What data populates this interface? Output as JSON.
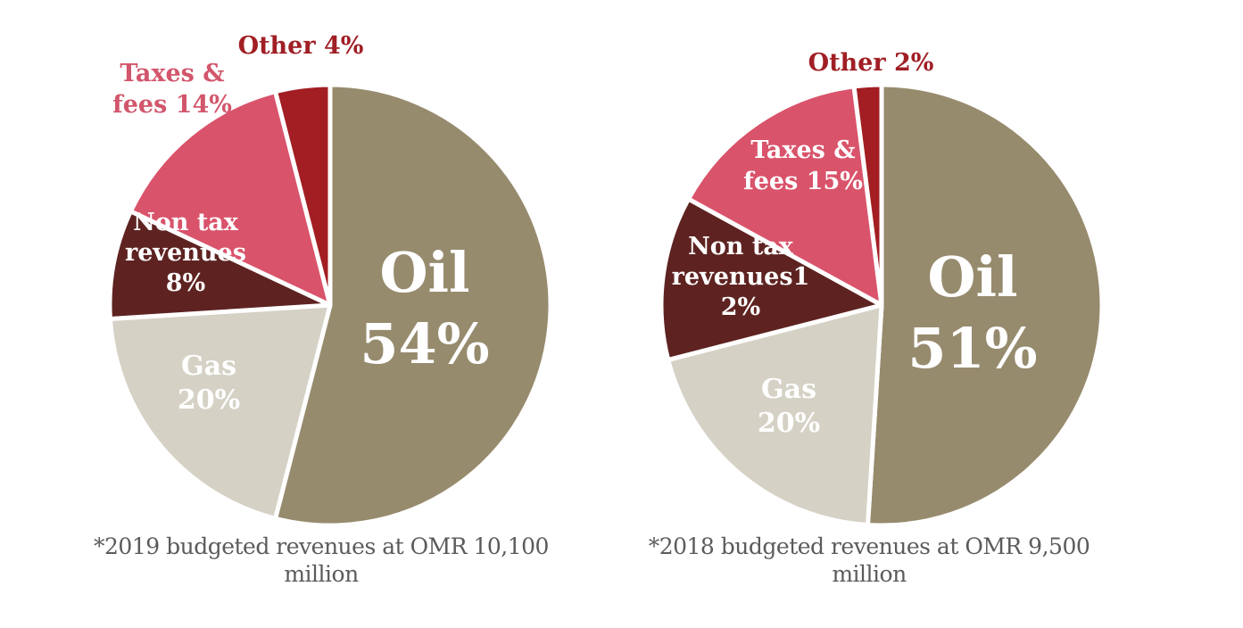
{
  "chart_data": [
    {
      "type": "pie",
      "title": "",
      "caption_line1": "*2019 budgeted revenues at OMR 10,100",
      "caption_line2": "million",
      "slices": [
        {
          "name": "Oil",
          "value": 54,
          "label_lines": [
            "Oil",
            "54%"
          ],
          "color": "#978b6e",
          "label_color": "#ffffff",
          "label_position": "inside"
        },
        {
          "name": "Gas",
          "value": 20,
          "label_lines": [
            "Gas",
            "20%"
          ],
          "color": "#d5d1c5",
          "label_color": "#ffffff",
          "label_position": "inside"
        },
        {
          "name": "Non tax revenues",
          "value": 8,
          "label_lines": [
            "Non tax",
            "revenues",
            "8%"
          ],
          "color": "#5e2321",
          "label_color": "#ffffff",
          "label_position": "inside"
        },
        {
          "name": "Taxes & fees",
          "value": 14,
          "label_lines": [
            "Taxes &",
            "fees 14%"
          ],
          "color": "#d9536b",
          "label_color": "#d2566c",
          "label_position": "outside"
        },
        {
          "name": "Other",
          "value": 4,
          "label_lines": [
            "Other 4%"
          ],
          "color": "#a21e23",
          "label_color": "#a01f25",
          "label_position": "outside"
        }
      ]
    },
    {
      "type": "pie",
      "title": "",
      "caption_line1": "*2018 budgeted revenues at OMR 9,500",
      "caption_line2": "million",
      "slices": [
        {
          "name": "Oil",
          "value": 51,
          "label_lines": [
            "Oil",
            "51%"
          ],
          "color": "#978b6e",
          "label_color": "#ffffff",
          "label_position": "inside"
        },
        {
          "name": "Gas",
          "value": 20,
          "label_lines": [
            "Gas",
            "20%"
          ],
          "color": "#d5d1c5",
          "label_color": "#ffffff",
          "label_position": "inside"
        },
        {
          "name": "Non tax revenues",
          "value": 12,
          "label_lines": [
            "Non tax",
            "revenues1",
            "2%"
          ],
          "color": "#5e2321",
          "label_color": "#ffffff",
          "label_position": "inside"
        },
        {
          "name": "Taxes & fees",
          "value": 15,
          "label_lines": [
            "Taxes &",
            "fees 15%"
          ],
          "color": "#d9536b",
          "label_color": "#ffffff",
          "label_position": "inside"
        },
        {
          "name": "Other",
          "value": 2,
          "label_lines": [
            "Other 2%"
          ],
          "color": "#a21e23",
          "label_color": "#a01f25",
          "label_position": "outside"
        }
      ]
    }
  ]
}
